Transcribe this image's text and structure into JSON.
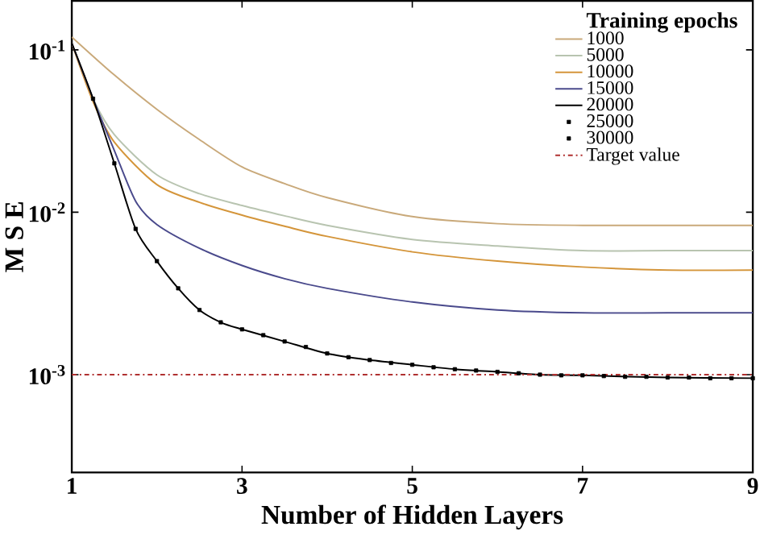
{
  "chart_data": {
    "type": "line",
    "xlabel": "Number of Hidden Layers",
    "ylabel": "M S E",
    "legend_title": "Training epochs",
    "log": "y",
    "grid": false,
    "legend": "top right",
    "xlim": [
      1,
      9
    ],
    "xticks": [
      1,
      3,
      5,
      7,
      9
    ],
    "ylim": [
      0.00025,
      0.2
    ],
    "yticks": [
      {
        "value": 0.1,
        "label": "10$^{-1}$"
      },
      {
        "value": 0.01,
        "label": "10$^{-2}$"
      },
      {
        "value": 0.001,
        "label": "10$^{-3}$"
      }
    ],
    "series": [
      {
        "name": "1000",
        "color": "#c9a97a",
        "x": [
          1,
          1.5,
          2,
          2.5,
          3,
          3.5,
          4,
          5,
          6,
          7,
          8,
          9
        ],
        "values": [
          0.12,
          0.07,
          0.043,
          0.028,
          0.019,
          0.015,
          0.0123,
          0.0094,
          0.0085,
          0.0083,
          0.0083,
          0.0083
        ]
      },
      {
        "name": "5000",
        "color": "#b8c4b0",
        "x": [
          1,
          1.25,
          1.5,
          2,
          2.5,
          3,
          3.5,
          4,
          5,
          6,
          7,
          8,
          9
        ],
        "values": [
          0.11,
          0.05,
          0.03,
          0.017,
          0.013,
          0.011,
          0.0095,
          0.0083,
          0.0068,
          0.0062,
          0.0058,
          0.0058,
          0.0058
        ]
      },
      {
        "name": "10000",
        "color": "#d4953a",
        "x": [
          1,
          1.25,
          1.5,
          2,
          2.5,
          3,
          3.5,
          4,
          5,
          6,
          7,
          8,
          9
        ],
        "values": [
          0.11,
          0.048,
          0.027,
          0.0148,
          0.0115,
          0.0096,
          0.0082,
          0.0071,
          0.0057,
          0.005,
          0.0046,
          0.0044,
          0.0044
        ]
      },
      {
        "name": "15000",
        "color": "#4a4a8c",
        "x": [
          1,
          1.25,
          1.5,
          1.75,
          2,
          2.5,
          3,
          3.5,
          4,
          5,
          6,
          7,
          8,
          9
        ],
        "values": [
          0.11,
          0.05,
          0.024,
          0.0117,
          0.0084,
          0.006,
          0.0047,
          0.0039,
          0.0034,
          0.0028,
          0.0025,
          0.0024,
          0.0024,
          0.0024
        ]
      },
      {
        "name": "20000",
        "color": "#000000",
        "x": [
          1,
          1.25,
          1.5,
          1.75,
          2,
          2.25,
          2.5,
          2.75,
          3,
          3.5,
          4,
          4.5,
          5,
          5.5,
          6,
          6.5,
          7,
          8,
          9
        ],
        "values": [
          0.11,
          0.05,
          0.02,
          0.0079,
          0.005,
          0.0034,
          0.0025,
          0.0021,
          0.0019,
          0.0016,
          0.00135,
          0.00123,
          0.00115,
          0.00108,
          0.00104,
          0.001,
          0.00099,
          0.00096,
          0.00095
        ]
      },
      {
        "name": "25000",
        "type": "scatter",
        "marker": "square",
        "color": "#000000",
        "x": [
          1.25,
          1.75,
          2.25,
          2.75,
          3.25,
          3.75,
          4.25,
          4.75,
          5.25,
          5.75,
          6.25,
          6.75,
          7.25,
          7.75,
          8.25,
          8.75
        ],
        "values": [
          0.05,
          0.0079,
          0.0034,
          0.0021,
          0.00175,
          0.00148,
          0.00128,
          0.00118,
          0.00111,
          0.00106,
          0.00102,
          0.00099,
          0.00098,
          0.00097,
          0.00096,
          0.00095
        ]
      },
      {
        "name": "30000",
        "type": "scatter",
        "marker": "square",
        "color": "#000000",
        "x": [
          1.5,
          2,
          2.5,
          3,
          3.5,
          4,
          4.5,
          5,
          5.5,
          6,
          6.5,
          7,
          7.5,
          8,
          8.5,
          9
        ],
        "values": [
          0.02,
          0.005,
          0.0025,
          0.0019,
          0.0016,
          0.00135,
          0.00123,
          0.00115,
          0.00108,
          0.00104,
          0.001,
          0.00099,
          0.00097,
          0.00096,
          0.00095,
          0.00095
        ]
      }
    ],
    "ref_lines": [
      {
        "axis": "y",
        "value": 0.001,
        "label": "Target value",
        "color": "#b03030",
        "line_style": "dashed"
      }
    ]
  }
}
